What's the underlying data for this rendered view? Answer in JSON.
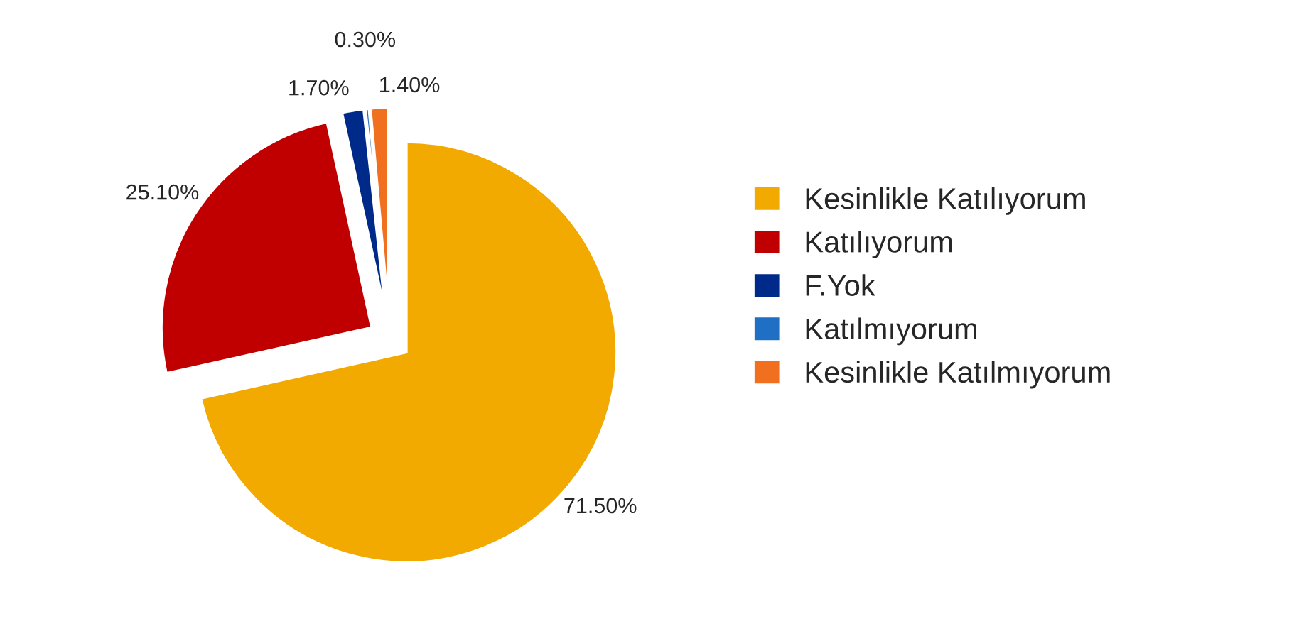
{
  "chart_data": {
    "type": "pie",
    "categories": [
      "Kesinlikle Katılıyorum",
      "Katılıyorum",
      "F.Yok",
      "Katılmıyorum",
      "Kesinlikle Katılmıyorum"
    ],
    "values": [
      71.5,
      25.1,
      1.7,
      0.3,
      1.4
    ],
    "value_labels": [
      "71.50%",
      "25.10%",
      "1.70%",
      "0.30%",
      "1.40%"
    ],
    "colors": [
      "#f2a900",
      "#c00000",
      "#002a8a",
      "#1f6fc4",
      "#f07020"
    ],
    "legend": "right"
  }
}
